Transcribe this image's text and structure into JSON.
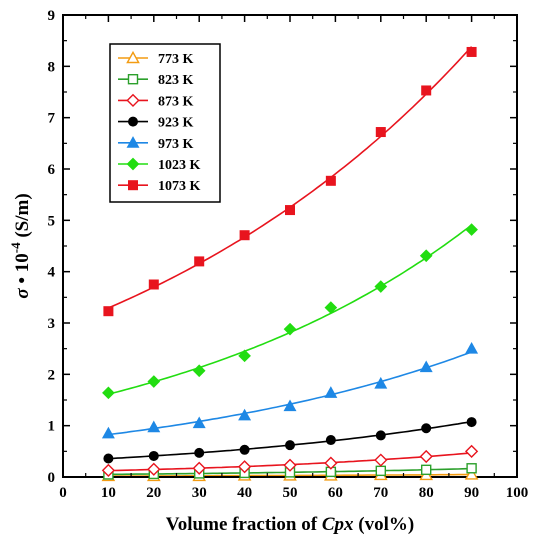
{
  "chart_data": {
    "type": "scatter",
    "xlabel_prefix": "Volume fraction of ",
    "xlabel_var": "Cpx",
    "xlabel_suffix": " (vol%)",
    "ylabel_sigma": "σ",
    "ylabel_mid": " • 10",
    "ylabel_exp": "-4",
    "ylabel_unit": " (S/m)",
    "xlim": [
      0,
      100
    ],
    "ylim": [
      0,
      9
    ],
    "xticks": [
      "0",
      "10",
      "20",
      "30",
      "40",
      "50",
      "60",
      "70",
      "80",
      "90",
      "100"
    ],
    "yticks": [
      "0",
      "1",
      "2",
      "3",
      "4",
      "5",
      "6",
      "7",
      "8",
      "9"
    ],
    "legend_position": "top-left",
    "x": [
      10,
      20,
      30,
      40,
      50,
      59,
      70,
      80,
      90
    ],
    "series": [
      {
        "name": "773 K",
        "color": "#f39c12",
        "marker": "triangle-open",
        "values": [
          0.02,
          0.02,
          0.02,
          0.03,
          0.03,
          0.03,
          0.04,
          0.04,
          0.05
        ]
      },
      {
        "name": "823 K",
        "color": "#2ca02c",
        "marker": "square-open",
        "values": [
          0.05,
          0.06,
          0.07,
          0.08,
          0.09,
          0.1,
          0.12,
          0.14,
          0.17
        ]
      },
      {
        "name": "873 K",
        "color": "#e8141e",
        "marker": "diamond-open",
        "values": [
          0.13,
          0.15,
          0.17,
          0.2,
          0.23,
          0.27,
          0.33,
          0.4,
          0.5
        ]
      },
      {
        "name": "923 K",
        "color": "#000000",
        "marker": "circle",
        "values": [
          0.36,
          0.41,
          0.47,
          0.53,
          0.62,
          0.72,
          0.81,
          0.95,
          1.07
        ]
      },
      {
        "name": "973 K",
        "color": "#1e88e5",
        "marker": "triangle",
        "values": [
          0.85,
          0.97,
          1.05,
          1.2,
          1.38,
          1.64,
          1.82,
          2.14,
          2.5
        ]
      },
      {
        "name": "1023 K",
        "color": "#22dd11",
        "marker": "diamond",
        "values": [
          1.64,
          1.86,
          2.07,
          2.36,
          2.88,
          3.3,
          3.71,
          4.31,
          4.82
        ]
      },
      {
        "name": "1073 K",
        "color": "#e8141e",
        "marker": "square",
        "values": [
          3.23,
          3.75,
          4.2,
          4.71,
          5.2,
          5.77,
          6.72,
          7.53,
          8.28
        ]
      }
    ]
  }
}
